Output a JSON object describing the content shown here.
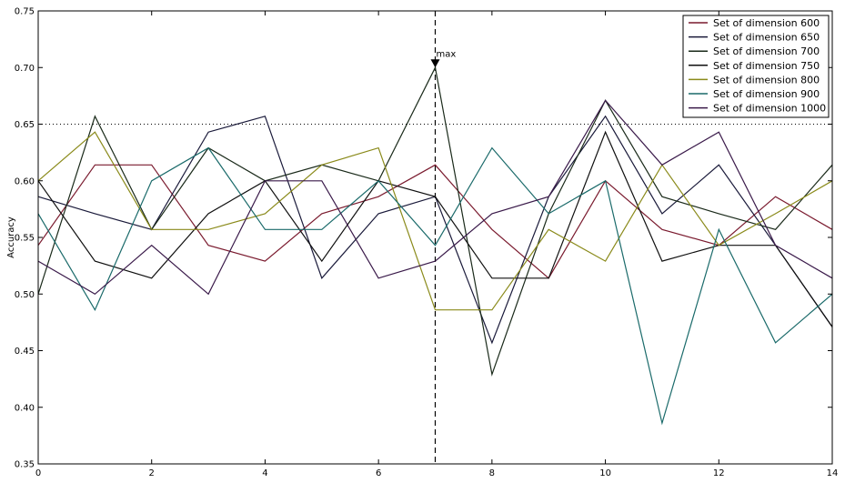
{
  "chart_data": {
    "type": "line",
    "ylabel": "Accuracy",
    "xlim": [
      0,
      14
    ],
    "ylim": [
      0.35,
      0.75
    ],
    "x": [
      0,
      1,
      2,
      3,
      4,
      5,
      6,
      7,
      8,
      9,
      10,
      11,
      12,
      13,
      14
    ],
    "x_ticks": [
      "0",
      "2",
      "4",
      "6",
      "8",
      "10",
      "12",
      "14"
    ],
    "y_ticks": [
      "0.35",
      "0.40",
      "0.45",
      "0.50",
      "0.55",
      "0.60",
      "0.65",
      "0.70",
      "0.75"
    ],
    "grid": false,
    "legend_position": "top-right",
    "series": [
      {
        "name": "Set of dimension 600",
        "color": "#7a1a2e",
        "values": [
          0.543,
          0.614,
          0.614,
          0.543,
          0.529,
          0.571,
          0.586,
          0.614,
          0.557,
          0.514,
          0.6,
          0.557,
          0.543,
          0.586,
          0.557
        ]
      },
      {
        "name": "Set of dimension 650",
        "color": "#1a1a3a",
        "values": [
          0.586,
          0.571,
          0.557,
          0.643,
          0.657,
          0.514,
          0.571,
          0.586,
          0.457,
          0.586,
          0.657,
          0.571,
          0.614,
          0.543,
          0.471
        ]
      },
      {
        "name": "Set of dimension 700",
        "color": "#1a2a1a",
        "values": [
          0.5,
          0.657,
          0.557,
          0.629,
          0.6,
          0.614,
          0.6,
          0.7,
          0.429,
          0.571,
          0.671,
          0.586,
          0.571,
          0.557,
          0.614
        ]
      },
      {
        "name": "Set of dimension 750",
        "color": "#101010",
        "values": [
          0.6,
          0.529,
          0.514,
          0.571,
          0.6,
          0.529,
          0.6,
          0.586,
          0.514,
          0.514,
          0.643,
          0.529,
          0.543,
          0.543,
          0.471
        ]
      },
      {
        "name": "Set of dimension 800",
        "color": "#8a8a1a",
        "values": [
          0.6,
          0.643,
          0.557,
          0.557,
          0.571,
          0.614,
          0.629,
          0.486,
          0.486,
          0.557,
          0.529,
          0.614,
          0.543,
          0.571,
          0.6
        ]
      },
      {
        "name": "Set of dimension 900",
        "color": "#1a6a6a",
        "values": [
          0.571,
          0.486,
          0.6,
          0.629,
          0.557,
          0.557,
          0.6,
          0.543,
          0.629,
          0.571,
          0.6,
          0.386,
          0.557,
          0.457,
          0.5
        ]
      },
      {
        "name": "Set of dimension 1000",
        "color": "#3a1a4a",
        "values": [
          0.529,
          0.5,
          0.543,
          0.5,
          0.6,
          0.6,
          0.514,
          0.529,
          0.571,
          0.586,
          0.671,
          0.614,
          0.643,
          0.543,
          0.514
        ]
      }
    ],
    "reference_lines": {
      "horizontal_dotted_y": 0.65,
      "vertical_dashed_x": 7
    },
    "annotations": [
      {
        "text": "max",
        "x": 7,
        "y": 0.7,
        "marker": "triangle-down"
      }
    ]
  }
}
